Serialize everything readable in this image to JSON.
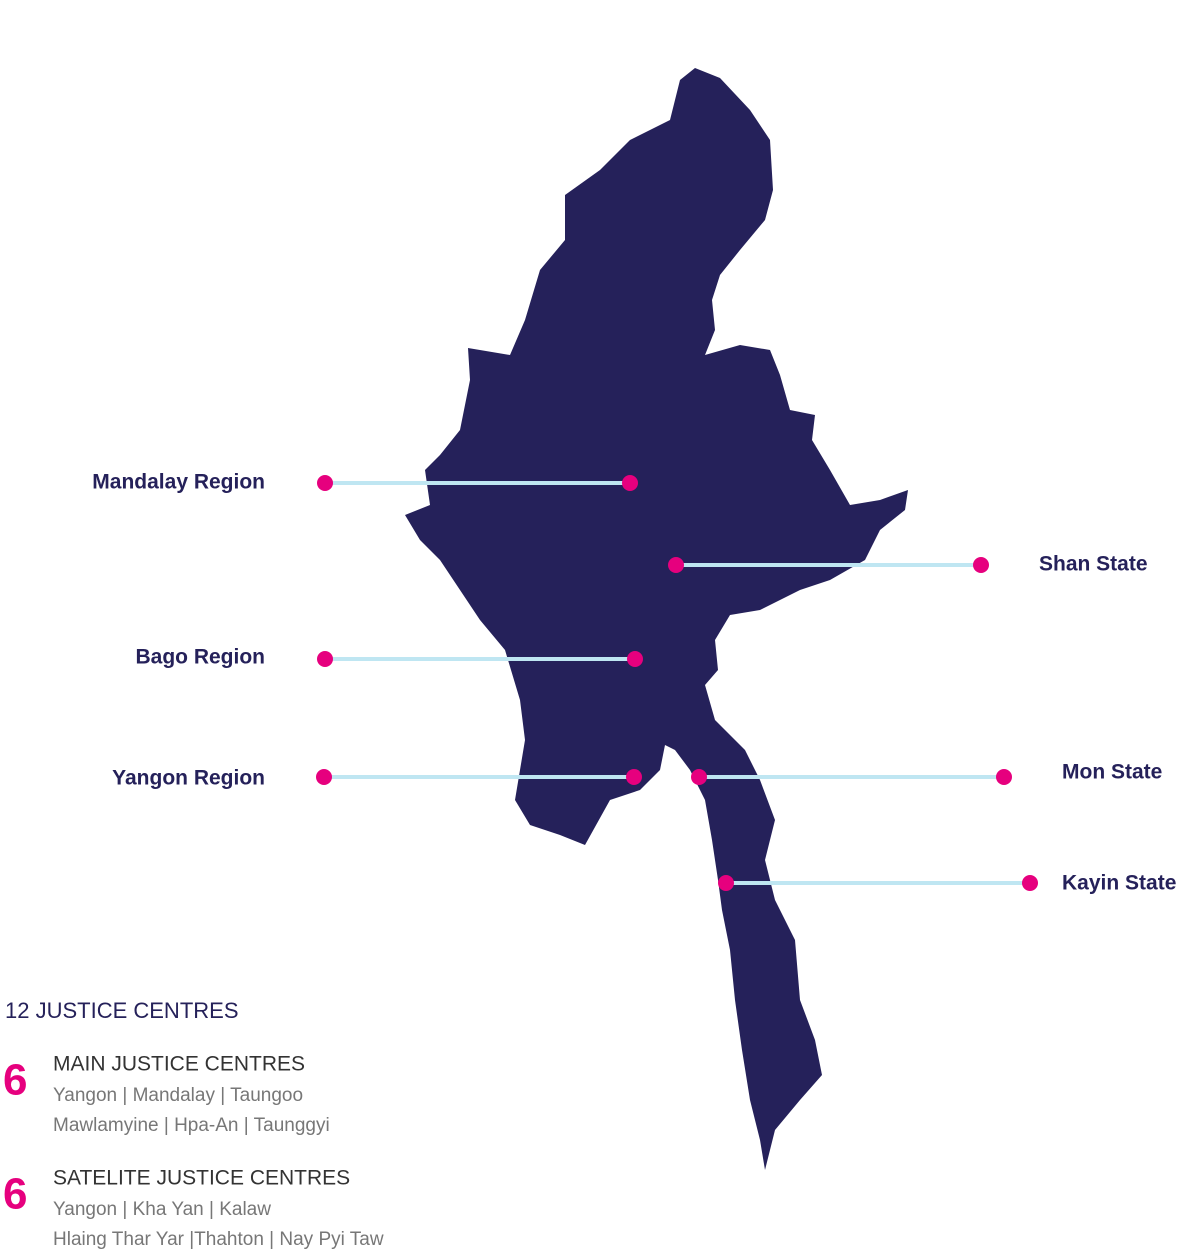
{
  "regions": [
    {
      "label": "Mandalay Region"
    },
    {
      "label": "Shan State"
    },
    {
      "label": "Bago Region"
    },
    {
      "label": "Yangon Region"
    },
    {
      "label": "Mon State"
    },
    {
      "label": "Kayin State"
    }
  ],
  "summary": {
    "title": "12 JUSTICE CENTRES",
    "groups": [
      {
        "count": 6,
        "title": "MAIN JUSTICE CENTRES",
        "lines": [
          "Yangon | Mandalay | Taungoo",
          "Mawlamyine | Hpa-An | Taunggyi"
        ]
      },
      {
        "count": 6,
        "title": "SATELITE JUSTICE CENTRES",
        "lines": [
          "Yangon | Kha Yan | Kalaw",
          "Hlaing Thar Yar |Thahton | Nay Pyi Taw"
        ]
      }
    ]
  }
}
